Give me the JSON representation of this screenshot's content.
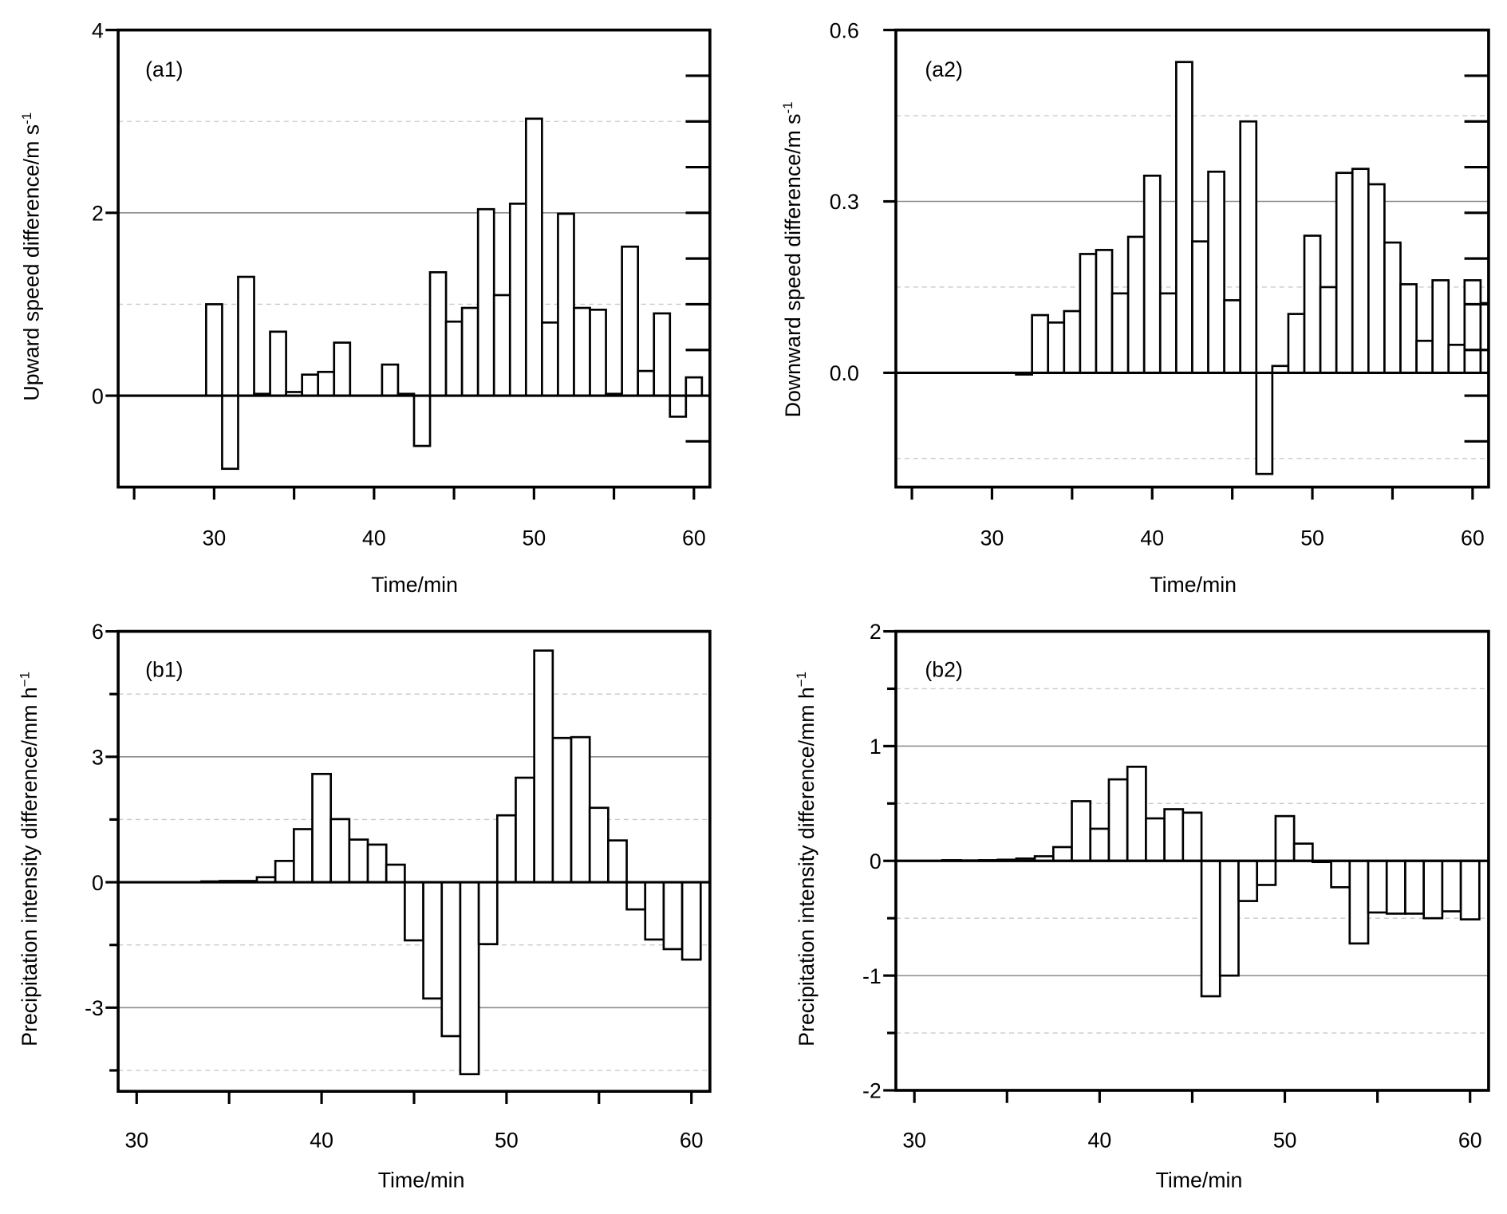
{
  "chart_data": [
    {
      "type": "bar",
      "panel_label": "(a1)",
      "xlabel": "Time/min",
      "ylabel": "Upward speed difference/m s",
      "ylabel_superscript": "-1",
      "xlim": [
        24,
        61
      ],
      "ylim": [
        -1,
        4
      ],
      "xticks": [
        30,
        40,
        50,
        60
      ],
      "xtick_labels": [
        "30",
        "40",
        "50",
        "60"
      ],
      "xminor_ticks": [
        25,
        35,
        45,
        55
      ],
      "yticks": [
        0,
        2,
        4
      ],
      "ytick_labels": [
        "0",
        "2",
        "4"
      ],
      "yminor_ticks": [
        -0.5,
        0.5,
        1,
        1.5,
        2,
        2.5,
        3,
        3.5
      ],
      "grid": {
        "solid": [
          2
        ],
        "dashed": [
          1,
          3
        ]
      },
      "x": [
        30,
        31,
        32,
        33,
        34,
        35,
        36,
        37,
        38,
        39,
        40,
        41,
        42,
        43,
        44,
        45,
        46,
        47,
        48,
        49,
        50,
        51,
        52,
        53,
        54,
        55,
        56,
        57,
        58,
        59,
        60
      ],
      "values": [
        1.0,
        -0.8,
        1.3,
        0.02,
        0.7,
        0.04,
        0.23,
        0.26,
        0.58,
        0,
        0,
        0.34,
        0.02,
        -0.55,
        1.35,
        0.81,
        0.96,
        2.04,
        1.1,
        2.1,
        3.03,
        0.8,
        1.99,
        0.96,
        0.94,
        0.02,
        1.63,
        0.27,
        0.9,
        -0.23,
        0.2
      ]
    },
    {
      "type": "bar",
      "panel_label": "(a2)",
      "xlabel": "Time/min",
      "ylabel": "Downward speed difference/m s",
      "ylabel_superscript": "-1",
      "xlim": [
        24,
        61
      ],
      "ylim": [
        -0.2,
        0.6
      ],
      "xticks": [
        30,
        40,
        50,
        60
      ],
      "xtick_labels": [
        "30",
        "40",
        "50",
        "60"
      ],
      "xminor_ticks": [
        25,
        35,
        45,
        55
      ],
      "yticks": [
        0,
        0.3,
        0.6
      ],
      "ytick_labels": [
        "0.0",
        "0.3",
        "0.6"
      ],
      "yminor_ticks": [
        -0.12,
        -0.04,
        0.04,
        0.12,
        0.2,
        0.28,
        0.36,
        0.44,
        0.52
      ],
      "grid": {
        "solid": [
          0.3
        ],
        "dashed": [
          -0.15,
          0.15,
          0.45
        ]
      },
      "x": [
        32,
        33,
        34,
        35,
        36,
        37,
        38,
        39,
        40,
        41,
        42,
        43,
        44,
        45,
        46,
        47,
        48,
        49,
        50,
        51,
        52,
        53,
        54,
        55,
        56,
        57,
        58,
        59,
        60,
        61
      ],
      "values": [
        -0.003,
        0.101,
        0.088,
        0.108,
        0.208,
        0.215,
        0.139,
        0.238,
        0.345,
        0.139,
        0.544,
        0.23,
        0.352,
        0.127,
        0.44,
        -0.177,
        0.012,
        0.103,
        0.24,
        0.15,
        0.35,
        0.357,
        0.33,
        0.228,
        0.155,
        0.056,
        0.162,
        0.049,
        0.162,
        0.122
      ]
    },
    {
      "type": "bar",
      "panel_label": "(b1)",
      "xlabel": "Time/min",
      "ylabel": "Precipitation intensity difference/mm h",
      "ylabel_superscript": "−1",
      "xlim": [
        29,
        61
      ],
      "ylim": [
        -5,
        6
      ],
      "xticks": [
        30,
        40,
        50,
        60
      ],
      "xtick_labels": [
        "30",
        "40",
        "50",
        "60"
      ],
      "xminor_ticks": [
        35,
        45,
        55
      ],
      "yticks": [
        -3,
        0,
        3,
        6
      ],
      "ytick_labels": [
        "-3",
        "0",
        "3",
        "6"
      ],
      "yminor_ticks": [
        -4.5,
        -1.5,
        1.5,
        4.5
      ],
      "grid": {
        "solid": [
          -3,
          3
        ],
        "dashed": [
          -4.5,
          -1.5,
          1.5,
          4.5
        ]
      },
      "x": [
        34,
        35,
        36,
        37,
        38,
        39,
        40,
        41,
        42,
        43,
        44,
        45,
        46,
        47,
        48,
        49,
        50,
        51,
        52,
        53,
        54,
        55,
        56,
        57,
        58,
        59,
        60
      ],
      "values": [
        0.02,
        0.03,
        0.03,
        0.12,
        0.51,
        1.27,
        2.59,
        1.51,
        1.02,
        0.9,
        0.42,
        -1.39,
        -2.78,
        -3.68,
        -4.59,
        -1.48,
        1.6,
        2.5,
        5.54,
        3.45,
        3.47,
        1.78,
        1.0,
        -0.65,
        -1.37,
        -1.6,
        -1.85
      ]
    },
    {
      "type": "bar",
      "panel_label": "(b2)",
      "xlabel": "Time/min",
      "ylabel": "Precipitation intensity difference/mm h",
      "ylabel_superscript": "−1",
      "xlim": [
        29,
        61
      ],
      "ylim": [
        -2,
        2
      ],
      "xticks": [
        30,
        40,
        50,
        60
      ],
      "xtick_labels": [
        "30",
        "40",
        "50",
        "60"
      ],
      "xminor_ticks": [
        35,
        45,
        55
      ],
      "yticks": [
        -2,
        -1,
        0,
        1,
        2
      ],
      "ytick_labels": [
        "-2",
        "-1",
        "0",
        "1",
        "2"
      ],
      "yminor_ticks": [
        -1.5,
        -0.5,
        0.5,
        1.5
      ],
      "grid": {
        "solid": [
          -1,
          1
        ],
        "dashed": [
          -1.5,
          -0.5,
          0.5,
          1.5
        ]
      },
      "x": [
        32,
        33,
        34,
        35,
        36,
        37,
        38,
        39,
        40,
        41,
        42,
        43,
        44,
        45,
        46,
        47,
        48,
        49,
        50,
        51,
        52,
        53,
        54,
        55,
        56,
        57,
        58,
        59,
        60
      ],
      "values": [
        0.006,
        0.004,
        0.006,
        0.01,
        0.02,
        0.04,
        0.12,
        0.52,
        0.28,
        0.71,
        0.82,
        0.37,
        0.45,
        0.42,
        -1.18,
        -1.0,
        -0.35,
        -0.21,
        0.39,
        0.15,
        -0.01,
        -0.23,
        -0.72,
        -0.45,
        -0.46,
        -0.46,
        -0.5,
        -0.44,
        -0.51
      ]
    }
  ]
}
